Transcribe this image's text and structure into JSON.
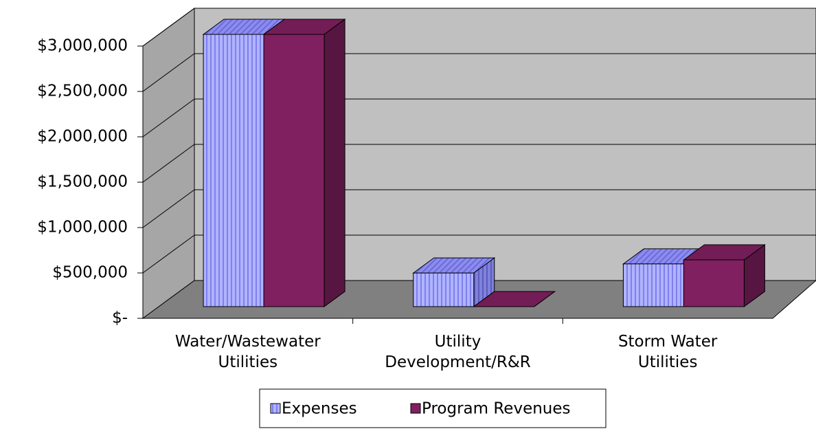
{
  "chart_data": {
    "type": "bar3d",
    "categories": [
      "Water/Wastewater\nUtilities",
      "Utility\nDevelopment/R&R",
      "Storm Water\nUtilities"
    ],
    "series": [
      {
        "name": "Expenses",
        "color": "#9999ff",
        "values": [
          3000000,
          370000,
          470000
        ]
      },
      {
        "name": "Program Revenues",
        "color": "#802060",
        "values": [
          3000000,
          0,
          515000
        ]
      }
    ],
    "ylim": [
      0,
      3000000
    ],
    "yticks": [
      {
        "value": 0,
        "label": "$-"
      },
      {
        "value": 500000,
        "label": "$500,000"
      },
      {
        "value": 1000000,
        "label": "$1,000,000"
      },
      {
        "value": 1500000,
        "label": "$1,500,000"
      },
      {
        "value": 2000000,
        "label": "$2,000,000"
      },
      {
        "value": 2500000,
        "label": "$2,500,000"
      },
      {
        "value": 3000000,
        "label": "$3,000,000"
      }
    ],
    "grid": true,
    "legend": "bottom"
  }
}
